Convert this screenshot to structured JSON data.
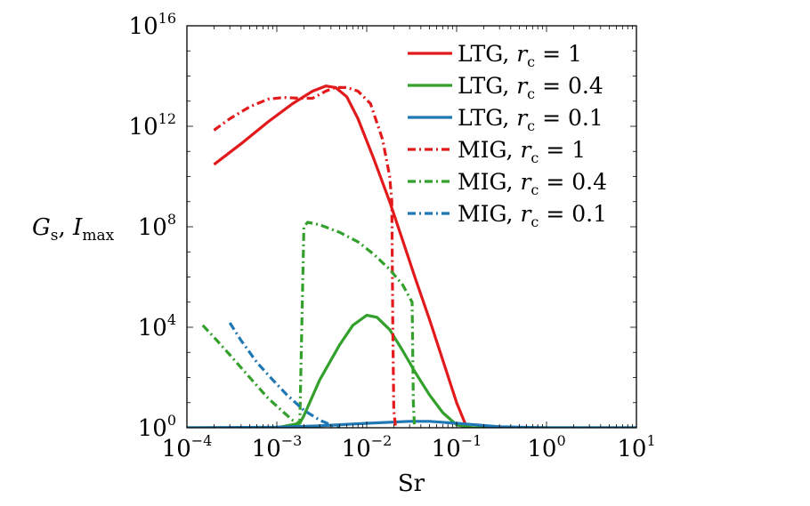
{
  "chart_data": {
    "type": "line",
    "title": "",
    "xlabel": "Sr",
    "ylabel": "G_s, I_max",
    "xscale": "log",
    "yscale": "log",
    "xlim": [
      0.0001,
      10
    ],
    "ylim": [
      1,
      1e+16
    ],
    "x_ticks": [
      {
        "value": 0.0001,
        "base": "10",
        "exp": "−4"
      },
      {
        "value": 0.001,
        "base": "10",
        "exp": "−3"
      },
      {
        "value": 0.01,
        "base": "10",
        "exp": "−2"
      },
      {
        "value": 0.1,
        "base": "10",
        "exp": "−1"
      },
      {
        "value": 1,
        "base": "10",
        "exp": "0"
      },
      {
        "value": 10,
        "base": "10",
        "exp": "1"
      }
    ],
    "y_ticks": [
      {
        "value": 1,
        "base": "10",
        "exp": "0"
      },
      {
        "value": 10000,
        "base": "10",
        "exp": "4"
      },
      {
        "value": 100000000,
        "base": "10",
        "exp": "8"
      },
      {
        "value": 1000000000000.0,
        "base": "10",
        "exp": "12"
      },
      {
        "value": 1e+16,
        "base": "10",
        "exp": "16"
      }
    ],
    "grid": false,
    "legend_position": "top-right",
    "series": [
      {
        "name": "LTG, r_c = 1",
        "color": "#e31a1c",
        "style": "solid",
        "x": [
          0.0002,
          0.0004,
          0.0008,
          0.0015,
          0.0025,
          0.0035,
          0.0045,
          0.006,
          0.008,
          0.012,
          0.018,
          0.025,
          0.035,
          0.05,
          0.07,
          0.1,
          0.13
        ],
        "y": [
          30000000000.0,
          200000000000.0,
          1500000000000.0,
          8000000000000.0,
          25000000000000.0,
          40000000000000.0,
          35000000000000.0,
          15000000000000.0,
          2000000000000.0,
          50000000000.0,
          1000000000.0,
          30000000.0,
          800000.0,
          20000.0,
          500,
          10,
          1
        ]
      },
      {
        "name": "LTG, r_c = 0.4",
        "color": "#33a02c",
        "style": "solid",
        "x": [
          0.0001,
          0.001,
          0.0018,
          0.002,
          0.003,
          0.005,
          0.007,
          0.01,
          0.013,
          0.018,
          0.025,
          0.035,
          0.05,
          0.07,
          0.1,
          0.15,
          10
        ],
        "y": [
          1,
          1,
          1.5,
          3,
          80,
          2000,
          12000,
          30000,
          25000,
          8000,
          1200,
          150,
          20,
          4,
          1.3,
          1,
          1
        ]
      },
      {
        "name": "LTG, r_c = 0.1",
        "color": "#1f78b4",
        "style": "solid",
        "x": [
          0.0001,
          0.001,
          0.003,
          0.01,
          0.03,
          0.05,
          0.1,
          0.3,
          1,
          10
        ],
        "y": [
          1,
          1.05,
          1.2,
          1.5,
          1.8,
          1.8,
          1.5,
          1.1,
          1,
          1
        ]
      },
      {
        "name": "MIG, r_c = 1",
        "color": "#e31a1c",
        "style": "dashdot",
        "x": [
          0.0002,
          0.0003,
          0.0005,
          0.0008,
          0.0012,
          0.0018,
          0.0025,
          0.0035,
          0.0045,
          0.006,
          0.008,
          0.011,
          0.015,
          0.018,
          0.019,
          0.0195,
          0.02,
          0.021
        ],
        "y": [
          700000000000.0,
          2000000000000.0,
          6000000000000.0,
          12000000000000.0,
          14000000000000.0,
          13000000000000.0,
          13000000000000.0,
          25000000000000.0,
          35000000000000.0,
          35000000000000.0,
          25000000000000.0,
          8000000000000.0,
          300000000000.0,
          10000000000.0,
          1000000000.0,
          10000.0,
          5,
          1
        ]
      },
      {
        "name": "MIG, r_c = 0.4",
        "color": "#33a02c",
        "style": "dashdot",
        "x": [
          0.00015,
          0.0002,
          0.0003,
          0.0005,
          0.0008,
          0.0012,
          0.0015,
          0.0018,
          0.002,
          0.0022,
          0.003,
          0.005,
          0.008,
          0.012,
          0.018,
          0.025,
          0.032,
          0.0325,
          0.033,
          0.034
        ],
        "y": [
          12000,
          4000,
          800,
          100,
          15,
          4,
          2,
          1.5,
          100000000.0,
          150000000.0,
          120000000.0,
          60000000.0,
          25000000.0,
          8000000.0,
          2000000.0,
          500000.0,
          100000.0,
          1000,
          10,
          1
        ]
      },
      {
        "name": "MIG, r_c = 0.1",
        "color": "#1f78b4",
        "style": "dashdot",
        "x": [
          0.0003,
          0.0004,
          0.0006,
          0.0009,
          0.0013,
          0.002,
          0.003,
          0.004,
          0.005
        ],
        "y": [
          15000,
          3000,
          400,
          80,
          20,
          5,
          2,
          1.3,
          1
        ]
      }
    ]
  }
}
